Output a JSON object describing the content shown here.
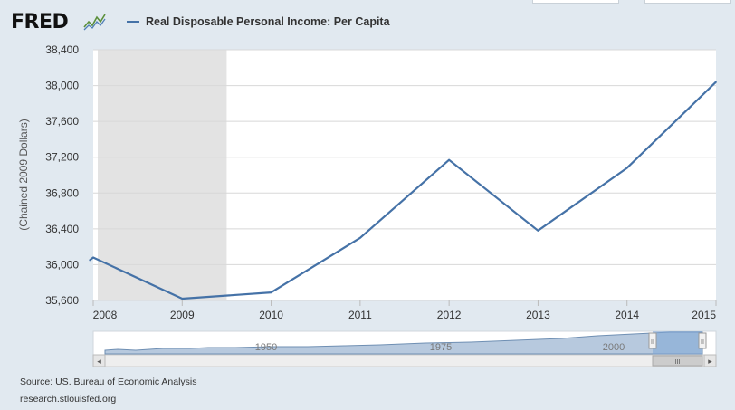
{
  "header": {
    "logo_text": "FRED",
    "logo_icon": "trend-lines-icon",
    "legend_label": "Real Disposable Personal Income: Per Capita"
  },
  "colors": {
    "series": "#4572a7",
    "recession": "#e3e3e3",
    "grid": "#d8d8d8",
    "background": "#e1e9f0",
    "plot_background": "#ffffff"
  },
  "chart_data": {
    "type": "line",
    "title": "",
    "xlabel": "",
    "ylabel": "(Chained 2009 Dollars)",
    "ylim": [
      35600,
      38400
    ],
    "xlim": [
      2008.0,
      2015.0
    ],
    "yticks": [
      35600,
      36000,
      36400,
      36800,
      37200,
      37600,
      38000,
      38400
    ],
    "ytick_labels": [
      "35,600",
      "36,000",
      "36,400",
      "36,800",
      "37,200",
      "37,600",
      "38,000",
      "38,400"
    ],
    "xticks": [
      2008,
      2009,
      2010,
      2011,
      2012,
      2013,
      2014,
      2015
    ],
    "xtick_labels": [
      "2008",
      "2009",
      "2010",
      "2011",
      "2012",
      "2013",
      "2014",
      "2015"
    ],
    "grid": true,
    "recession_shading": [
      {
        "start": 2008.0,
        "end": 2009.5
      }
    ],
    "series": [
      {
        "name": "Real Disposable Personal Income: Per Capita",
        "x": [
          2007.96,
          2008.0,
          2009.0,
          2010.0,
          2011.0,
          2012.0,
          2013.0,
          2014.0,
          2015.0
        ],
        "values": [
          36050,
          36080,
          35620,
          35690,
          36300,
          37170,
          36380,
          37080,
          38040
        ]
      }
    ]
  },
  "navigator": {
    "labels": [
      "1950",
      "1975",
      "2000"
    ],
    "scroll_left_glyph": "◂",
    "scroll_right_glyph": "▸",
    "scroll_thumb_glyph": "III",
    "handle_glyph": "II"
  },
  "footer": {
    "source": "Source: US. Bureau of Economic Analysis",
    "url": "research.stlouisfed.org"
  }
}
